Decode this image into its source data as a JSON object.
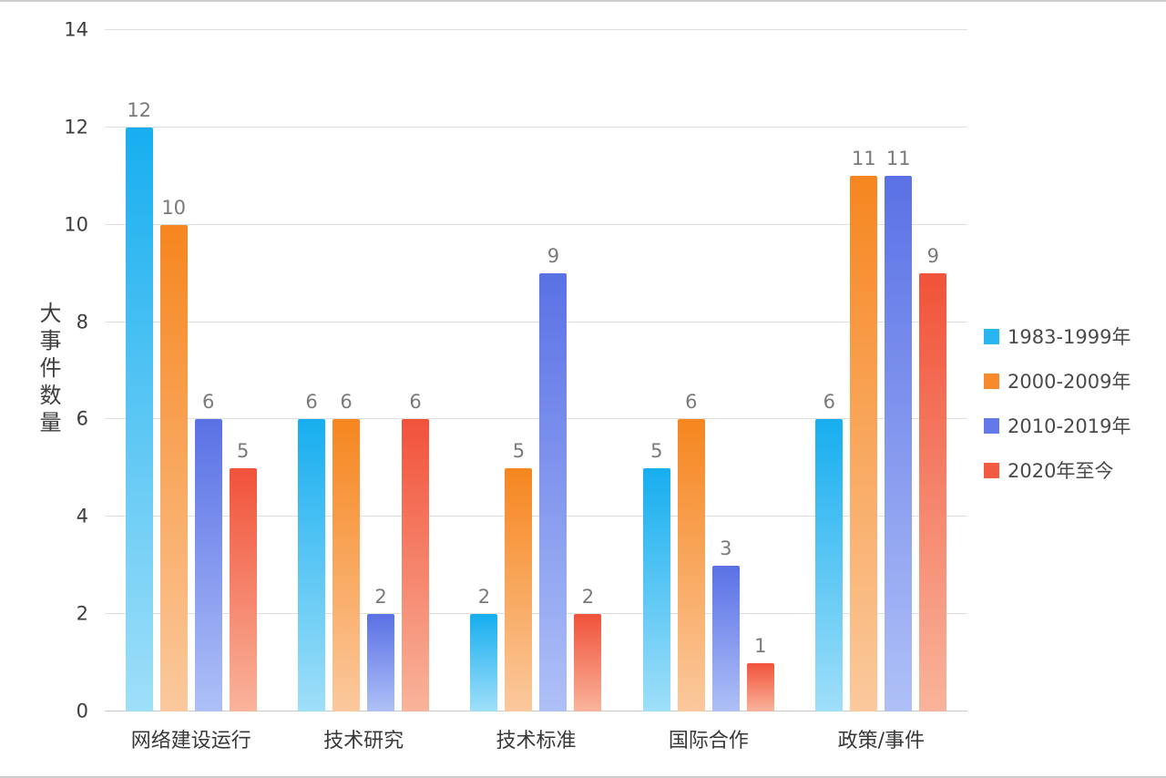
{
  "chart_data": {
    "type": "bar",
    "title": "",
    "xlabel": "",
    "ylabel": "大事件数量",
    "ylim": [
      0,
      14
    ],
    "yticks": [
      0,
      2,
      4,
      6,
      8,
      10,
      12,
      14
    ],
    "grid": true,
    "legend_position": "right",
    "categories": [
      "网络建设运行",
      "技术研究",
      "技术标准",
      "国际合作",
      "政策/事件"
    ],
    "series": [
      {
        "name": "1983-1999年",
        "legend_color": "#29b6f0",
        "color_top": "#17aeef",
        "color_bottom": "#9fdff9",
        "values": [
          12,
          6,
          2,
          5,
          6
        ]
      },
      {
        "name": "2000-2009年",
        "legend_color": "#f8892c",
        "color_top": "#f6861f",
        "color_bottom": "#fbc99d",
        "values": [
          10,
          6,
          5,
          6,
          11
        ]
      },
      {
        "name": "2010-2019年",
        "legend_color": "#6379e9",
        "color_top": "#5a71e5",
        "color_bottom": "#afc0f7",
        "values": [
          6,
          2,
          9,
          3,
          11
        ]
      },
      {
        "name": "2020年至今",
        "legend_color": "#f25b41",
        "color_top": "#f1523a",
        "color_bottom": "#f9b49b",
        "values": [
          5,
          6,
          2,
          1,
          9
        ]
      }
    ]
  }
}
